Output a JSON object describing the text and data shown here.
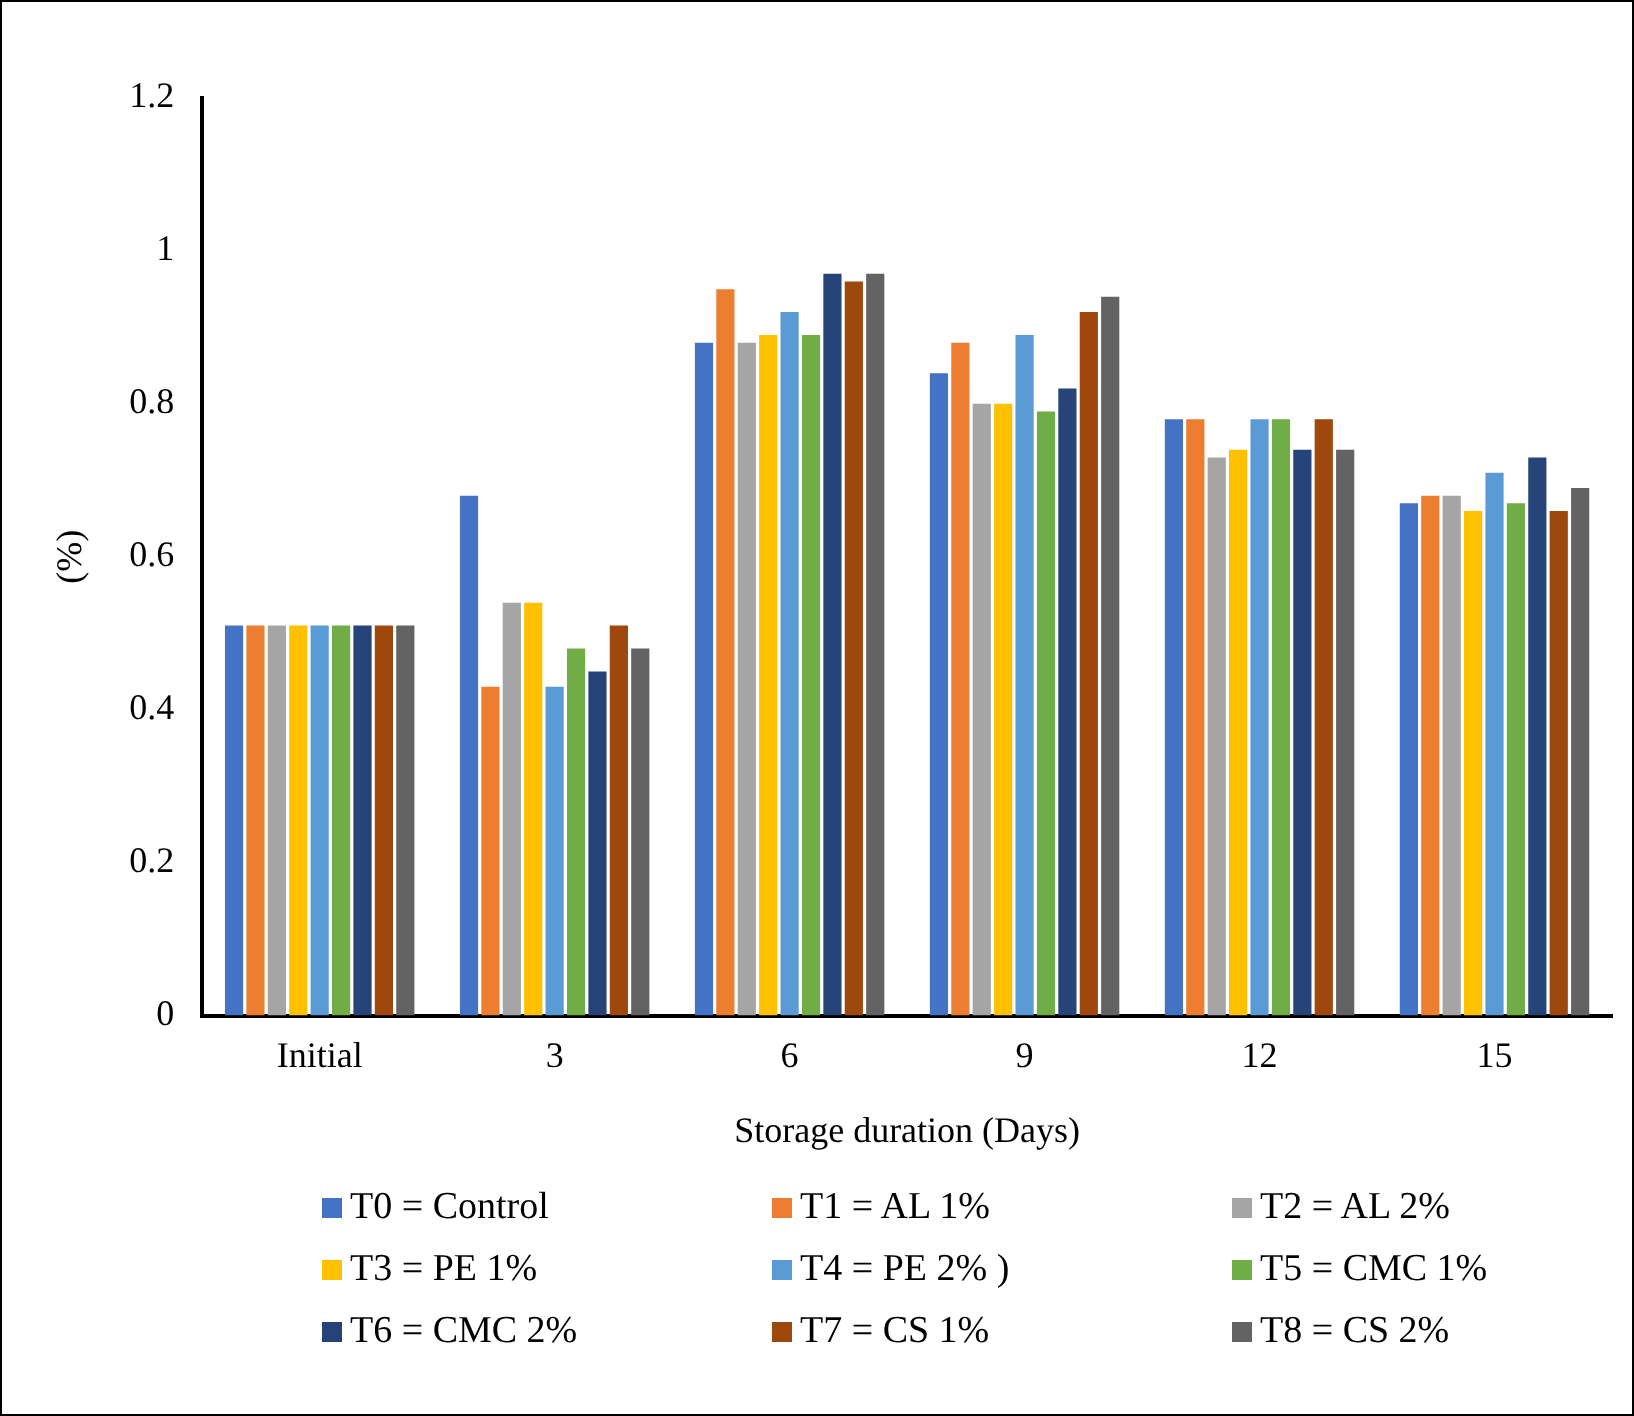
{
  "chart_data": {
    "type": "bar",
    "xlabel": "Storage duration (Days)",
    "ylabel": "(%)",
    "categories": [
      "Initial",
      "3",
      "6",
      "9",
      "12",
      "15"
    ],
    "series": [
      {
        "name": "T0 = Control",
        "color": "#4472c4",
        "values": [
          0.51,
          0.68,
          0.88,
          0.84,
          0.78,
          0.67
        ]
      },
      {
        "name": "T1 = AL 1%",
        "color": "#ed7d31",
        "values": [
          0.51,
          0.43,
          0.95,
          0.88,
          0.78,
          0.68
        ]
      },
      {
        "name": "T2 = AL 2%",
        "color": "#a5a5a5",
        "values": [
          0.51,
          0.54,
          0.88,
          0.8,
          0.73,
          0.68
        ]
      },
      {
        "name": "T3 = PE 1%",
        "color": "#ffc000",
        "values": [
          0.51,
          0.54,
          0.89,
          0.8,
          0.74,
          0.66
        ]
      },
      {
        "name": "T4 = PE 2% )",
        "color": "#5b9bd5",
        "values": [
          0.51,
          0.43,
          0.92,
          0.89,
          0.78,
          0.71
        ]
      },
      {
        "name": "T5 = CMC 1%",
        "color": "#70ad47",
        "values": [
          0.51,
          0.48,
          0.89,
          0.79,
          0.78,
          0.67
        ]
      },
      {
        "name": "T6 = CMC 2%",
        "color": "#264478",
        "values": [
          0.51,
          0.45,
          0.97,
          0.82,
          0.74,
          0.73
        ]
      },
      {
        "name": "T7 = CS 1%",
        "color": "#9e480e",
        "values": [
          0.51,
          0.51,
          0.96,
          0.92,
          0.78,
          0.66
        ]
      },
      {
        "name": "T8 = CS 2%",
        "color": "#636363",
        "values": [
          0.51,
          0.48,
          0.97,
          0.94,
          0.74,
          0.69
        ]
      }
    ],
    "ylim": [
      0,
      1.2
    ],
    "yticks": [
      0,
      0.2,
      0.4,
      0.6,
      0.8,
      1,
      1.2
    ],
    "grid": false,
    "legend": "bottom"
  }
}
